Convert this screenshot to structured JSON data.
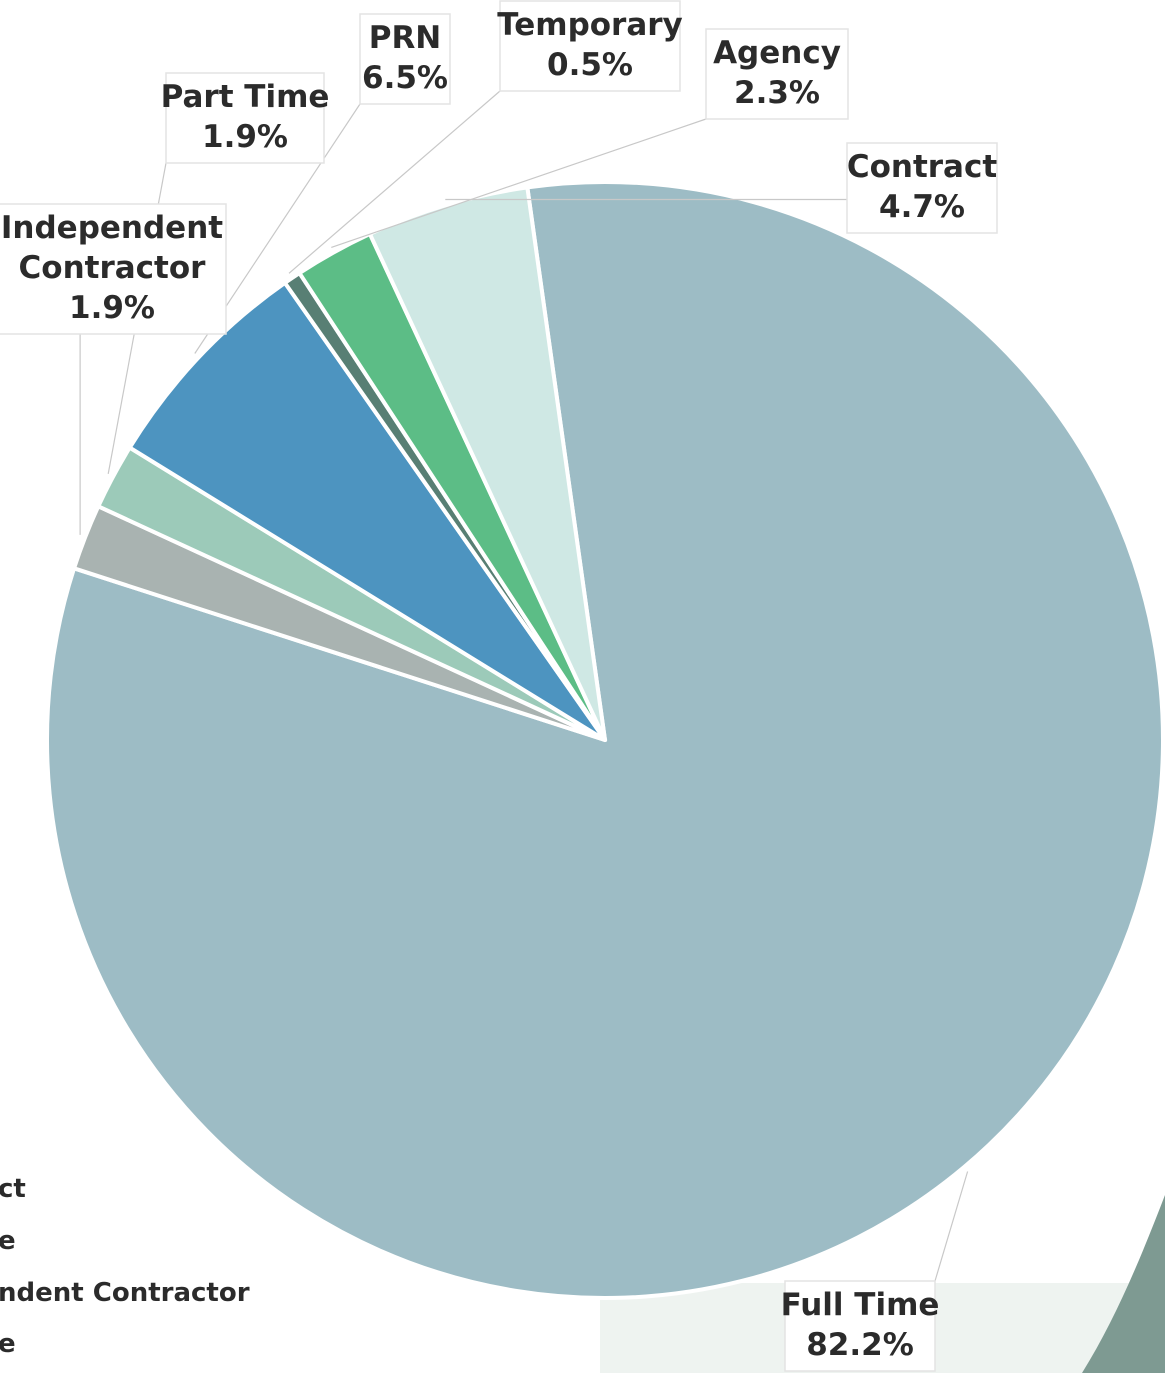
{
  "chart_data": {
    "type": "pie",
    "title": "",
    "slices": [
      {
        "name": "Full Time",
        "value": 82.2,
        "label": "82.2%",
        "color": "#9dbcc5"
      },
      {
        "name": "Independent Contractor",
        "value": 1.9,
        "label": "1.9%",
        "color": "#a9b3b1"
      },
      {
        "name": "Part Time",
        "value": 1.9,
        "label": "1.9%",
        "color": "#9ccab9"
      },
      {
        "name": "PRN",
        "value": 6.5,
        "label": "6.5%",
        "color": "#4d94c0"
      },
      {
        "name": "Temporary",
        "value": 0.5,
        "label": "0.5%",
        "color": "#587f74"
      },
      {
        "name": "Agency",
        "value": 2.3,
        "label": "2.3%",
        "color": "#5cbd86"
      },
      {
        "name": "Contract",
        "value": 4.7,
        "label": "4.7%",
        "color": "#cfe8e4"
      }
    ],
    "legend": {
      "position": "bottom-left",
      "items": [
        "ct",
        "e",
        "ndent Contractor",
        "e"
      ]
    }
  }
}
